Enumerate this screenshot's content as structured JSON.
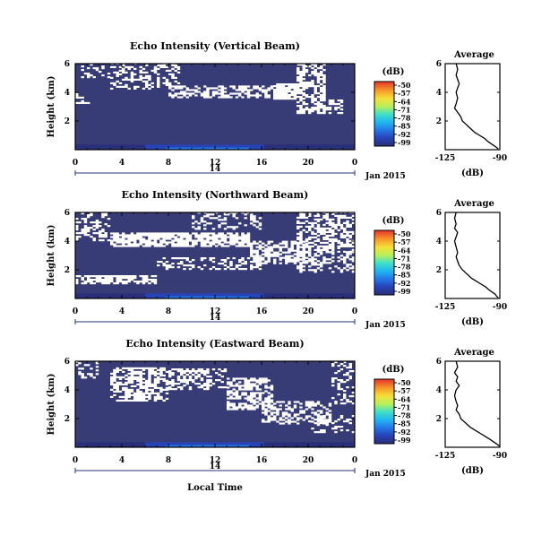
{
  "chart_data": [
    {
      "type": "heatmap",
      "title": "Echo Intensity (Vertical Beam)",
      "ylabel": "Height (km)",
      "xlabel": "",
      "x_ticks": [
        "0",
        "4",
        "8",
        "12",
        "16",
        "20",
        "0"
      ],
      "y_ticks": [
        "6",
        "4",
        "2"
      ],
      "xlim": [
        0,
        24
      ],
      "ylim": [
        0,
        6
      ],
      "day_label": "14",
      "date_label": "Jan 2015",
      "colorbar": {
        "label": "(dB)",
        "ticks": [
          "-50",
          "-57",
          "-64",
          "-71",
          "-78",
          "-85",
          "-92",
          "-99"
        ],
        "range": [
          -99,
          -50
        ]
      },
      "background_value_db": -96,
      "gaps": "white cells where no echo data",
      "grid": false
    },
    {
      "type": "line",
      "title": "Average",
      "xlabel": "(dB)",
      "ylabel": "",
      "x_ticks": [
        "-125",
        "-90"
      ],
      "y_ticks": [
        "6",
        "4",
        "2"
      ],
      "xlim": [
        -125,
        -90
      ],
      "ylim": [
        0,
        6
      ],
      "series": [
        {
          "x": [
            -118,
            -117,
            -118,
            -117,
            -116,
            -117,
            -118,
            -117,
            -118,
            -119,
            -117,
            -115,
            -114,
            -112,
            -110,
            -108,
            -106,
            -103,
            -100,
            -98,
            -96,
            -94,
            -92,
            -91
          ],
          "y": [
            6.0,
            5.6,
            5.2,
            4.9,
            4.6,
            4.3,
            4.0,
            3.6,
            3.2,
            2.9,
            2.6,
            2.3,
            2.0,
            1.8,
            1.6,
            1.4,
            1.2,
            1.0,
            0.8,
            0.6,
            0.45,
            0.3,
            0.15,
            0.05
          ]
        }
      ]
    },
    {
      "type": "heatmap",
      "title": "Echo Intensity (Northward Beam)",
      "ylabel": "Height (km)",
      "xlabel": "",
      "x_ticks": [
        "0",
        "4",
        "8",
        "12",
        "16",
        "20",
        "0"
      ],
      "y_ticks": [
        "6",
        "4",
        "2"
      ],
      "xlim": [
        0,
        24
      ],
      "ylim": [
        0,
        6
      ],
      "day_label": "14",
      "date_label": "Jan 2015",
      "colorbar": {
        "label": "(dB)",
        "ticks": [
          "-50",
          "-57",
          "-64",
          "-71",
          "-78",
          "-85",
          "-92",
          "-99"
        ],
        "range": [
          -99,
          -50
        ]
      },
      "background_value_db": -96,
      "gaps": "white cells where no echo data",
      "grid": false
    },
    {
      "type": "line",
      "title": "Average",
      "xlabel": "(dB)",
      "ylabel": "",
      "x_ticks": [
        "-125",
        "-90"
      ],
      "y_ticks": [
        "6",
        "4",
        "2"
      ],
      "xlim": [
        -125,
        -90
      ],
      "ylim": [
        0,
        6
      ],
      "series": [
        {
          "x": [
            -118,
            -119,
            -118,
            -119,
            -117,
            -118,
            -119,
            -118,
            -117,
            -118,
            -117,
            -116,
            -114,
            -112,
            -110,
            -108,
            -105,
            -102,
            -99,
            -97,
            -95,
            -93,
            -92,
            -91
          ],
          "y": [
            6.0,
            5.6,
            5.2,
            4.9,
            4.6,
            4.3,
            4.0,
            3.6,
            3.2,
            2.9,
            2.6,
            2.3,
            2.0,
            1.8,
            1.6,
            1.4,
            1.2,
            1.0,
            0.8,
            0.6,
            0.45,
            0.3,
            0.15,
            0.05
          ]
        }
      ]
    },
    {
      "type": "heatmap",
      "title": "Echo Intensity (Eastward Beam)",
      "ylabel": "Height (km)",
      "xlabel": "Local Time",
      "x_ticks": [
        "0",
        "4",
        "8",
        "12",
        "16",
        "20",
        "0"
      ],
      "y_ticks": [
        "6",
        "4",
        "2"
      ],
      "xlim": [
        0,
        24
      ],
      "ylim": [
        0,
        6
      ],
      "day_label": "14",
      "date_label": "Jan 2015",
      "colorbar": {
        "label": "(dB)",
        "ticks": [
          "-50",
          "-57",
          "-64",
          "-71",
          "-78",
          "-85",
          "-92",
          "-99"
        ],
        "range": [
          -99,
          -50
        ]
      },
      "background_value_db": -96,
      "gaps": "white cells where no echo data",
      "grid": false
    },
    {
      "type": "line",
      "title": "Average",
      "xlabel": "(dB)",
      "ylabel": "",
      "x_ticks": [
        "-125",
        "-90"
      ],
      "y_ticks": [
        "6",
        "4",
        "2"
      ],
      "xlim": [
        -125,
        -90
      ],
      "ylim": [
        0,
        6
      ],
      "series": [
        {
          "x": [
            -118,
            -117,
            -119,
            -117,
            -118,
            -116,
            -118,
            -119,
            -118,
            -117,
            -118,
            -116,
            -115,
            -113,
            -111,
            -109,
            -106,
            -103,
            -100,
            -97,
            -95,
            -93,
            -91,
            -90
          ],
          "y": [
            6.0,
            5.6,
            5.2,
            4.9,
            4.6,
            4.3,
            4.0,
            3.6,
            3.2,
            2.9,
            2.6,
            2.3,
            2.0,
            1.8,
            1.6,
            1.4,
            1.2,
            1.0,
            0.8,
            0.6,
            0.45,
            0.3,
            0.15,
            0.05
          ]
        }
      ]
    }
  ],
  "colors": {
    "background_echo": "#373b76",
    "gap": "#ffffff",
    "colormap": [
      "#2a2f7a",
      "#2743b8",
      "#2479e8",
      "#22b7f0",
      "#3fe0c8",
      "#b8f05a",
      "#f5e03a",
      "#f79a2a",
      "#e8432a"
    ]
  }
}
